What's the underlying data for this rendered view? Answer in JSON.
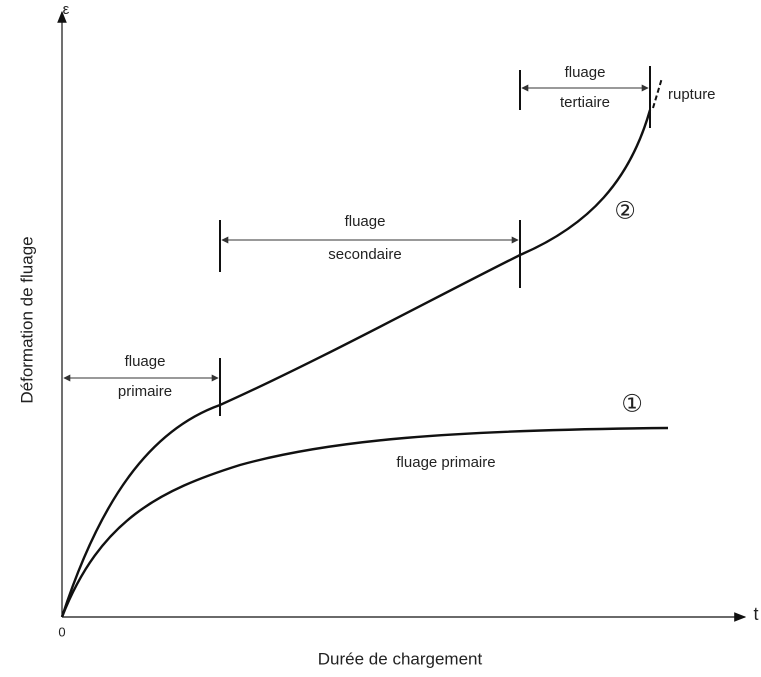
{
  "axes": {
    "y_symbol": "ε",
    "x_symbol": "t",
    "origin": "0",
    "y_label": "Déformation de fluage",
    "x_label": "Durée de chargement"
  },
  "regions": [
    {
      "lines": [
        "fluage",
        "primaire"
      ]
    },
    {
      "lines": [
        "fluage",
        "secondaire"
      ]
    },
    {
      "lines": [
        "fluage",
        "tertiaire"
      ]
    }
  ],
  "rupture": "rupture",
  "curves": [
    {
      "marker": "①",
      "label": "fluage primaire"
    },
    {
      "marker": "②"
    }
  ]
}
